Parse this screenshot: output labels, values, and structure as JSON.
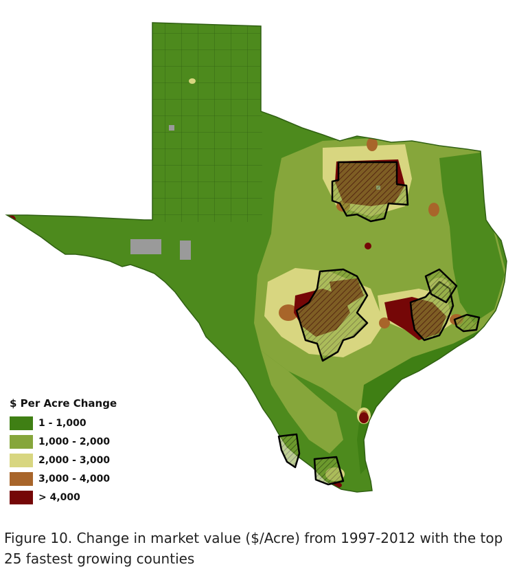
{
  "legend": {
    "title": "$ Per Acre Change",
    "items": [
      {
        "label": "1 - 1,000",
        "color": "#3f7f14"
      },
      {
        "label": "1,000 - 2,000",
        "color": "#86a63b"
      },
      {
        "label": "2,000 - 3,000",
        "color": "#d8d680"
      },
      {
        "label": "3,000 - 4,000",
        "color": "#a8652a"
      },
      {
        "label": "> 4,000",
        "color": "#750707"
      }
    ]
  },
  "colors": {
    "border": "#2f5f12",
    "no_data": "#9a9a9a",
    "highlight_outline": "#000000",
    "water": "#5f8080"
  },
  "caption": "Figure 10. Change in market value ($/Acre) from 1997-2012 with the top 25 fastest growing counties"
}
